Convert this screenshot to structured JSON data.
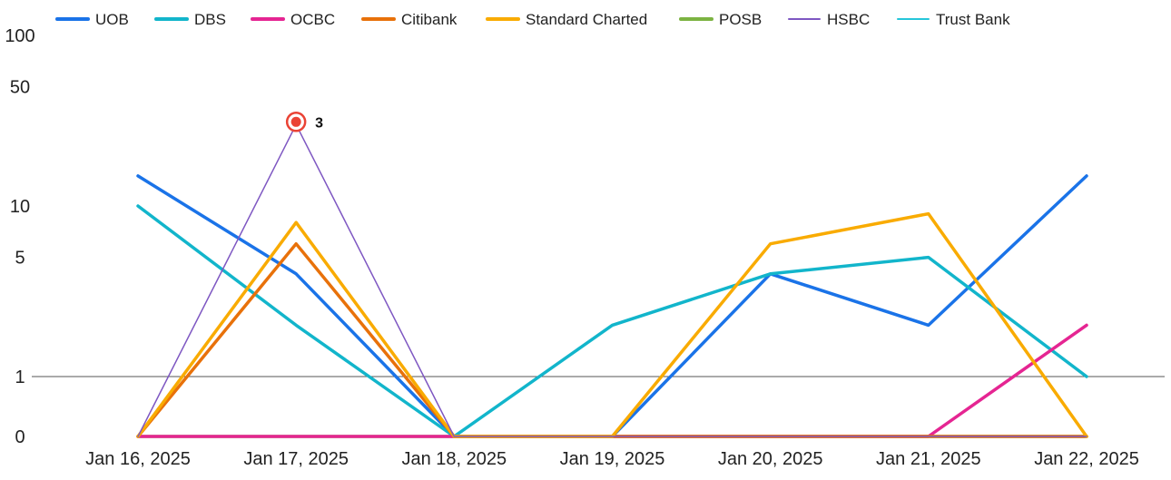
{
  "chart_data": {
    "type": "line",
    "title": "",
    "xlabel": "",
    "ylabel": "",
    "y_scale": "log",
    "ylim": [
      0,
      100
    ],
    "y_ticks": [
      "100",
      "50",
      "10",
      "5",
      "1",
      "0"
    ],
    "legend_position": "top-left",
    "x": [
      "Jan 16, 2025",
      "Jan 17, 2025",
      "Jan 18, 2025",
      "Jan 19, 2025",
      "Jan 20, 2025",
      "Jan 21, 2025",
      "Jan 22, 2025"
    ],
    "series": [
      {
        "name": "UOB",
        "color": "#1a73e8",
        "values": [
          15,
          4,
          0,
          0,
          4,
          2,
          15
        ]
      },
      {
        "name": "DBS",
        "color": "#12b5cb",
        "values": [
          10,
          2,
          0,
          2,
          4,
          5,
          1
        ]
      },
      {
        "name": "OCBC",
        "color": "#e52592",
        "values": [
          0,
          0,
          0,
          0,
          0,
          0,
          2
        ]
      },
      {
        "name": "Citibank",
        "color": "#e8710a",
        "values": [
          0,
          6,
          0,
          0,
          0,
          0,
          0
        ]
      },
      {
        "name": "Standard Charted",
        "color": "#f9ab00",
        "values": [
          0,
          8,
          0,
          0,
          6,
          9,
          0
        ]
      },
      {
        "name": "POSB",
        "color": "#7cb342",
        "values": [
          0,
          0,
          0,
          0,
          0,
          0,
          0
        ]
      },
      {
        "name": "HSBC",
        "color": "#7e57c2",
        "values": [
          0,
          30,
          0,
          0,
          0,
          0,
          0
        ]
      },
      {
        "name": "Trust Bank",
        "color": "#26c6da",
        "values": [
          0,
          0,
          0,
          0,
          0,
          0,
          0
        ]
      }
    ],
    "annotation": {
      "series": "HSBC",
      "x": "Jan 17, 2025",
      "label": "3",
      "color": "#ea4335"
    }
  }
}
